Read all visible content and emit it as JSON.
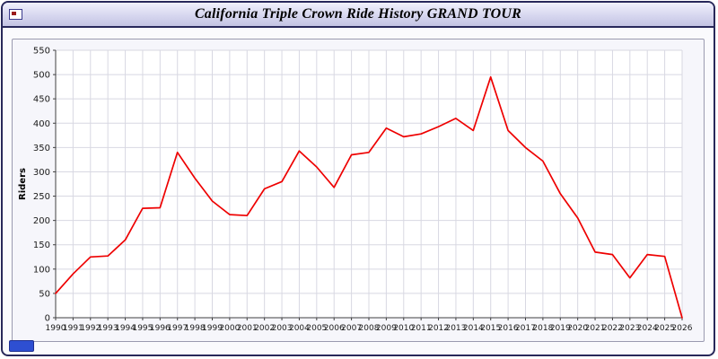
{
  "window": {
    "title": "California Triple Crown Ride History GRAND TOUR"
  },
  "colors": {
    "line": "#ee0000",
    "grid": "#d8d8e2",
    "axis": "#404040",
    "tick_text": "#1a1a1a",
    "frame_border": "#28285a",
    "badge_blue": "#2e4fd2"
  },
  "chart_data": {
    "type": "line",
    "title": "California Triple Crown Ride History GRAND TOUR",
    "xlabel": "",
    "ylabel": "Riders",
    "ylim": [
      0,
      550
    ],
    "ytick_step": 50,
    "grid": true,
    "legend": "none",
    "line_color": "#ee0000",
    "categories": [
      1990,
      1991,
      1992,
      1993,
      1994,
      1995,
      1996,
      1997,
      1998,
      1999,
      2000,
      2001,
      2002,
      2003,
      2004,
      2005,
      2006,
      2007,
      2008,
      2009,
      2010,
      2011,
      2012,
      2013,
      2014,
      2015,
      2016,
      2017,
      2018,
      2019,
      2020,
      2021,
      2022,
      2023,
      2024,
      2025,
      2026
    ],
    "values": [
      50,
      90,
      125,
      127,
      160,
      225,
      226,
      340,
      287,
      240,
      212,
      210,
      265,
      280,
      343,
      310,
      268,
      335,
      340,
      390,
      372,
      378,
      393,
      410,
      385,
      495,
      385,
      350,
      322,
      255,
      205,
      135,
      130,
      82,
      130,
      126,
      0
    ]
  }
}
